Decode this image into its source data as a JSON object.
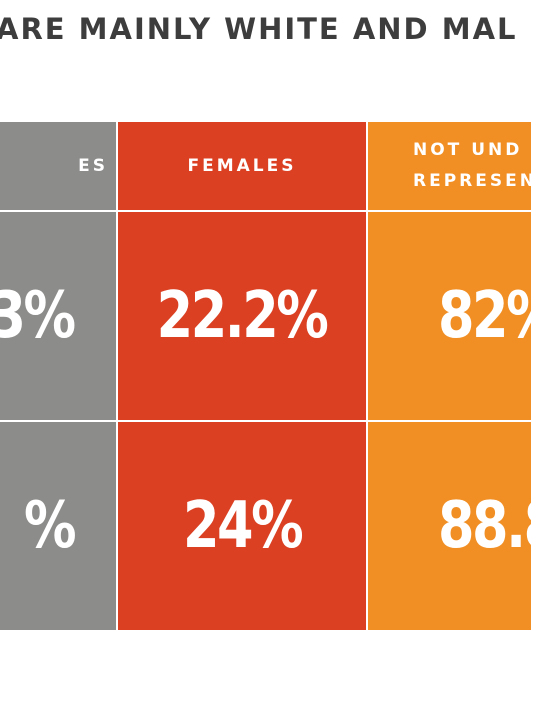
{
  "title": "ARE MAINLY WHITE AND MAL",
  "columns": [
    {
      "header_lines": [
        "ES"
      ]
    },
    {
      "header_lines": [
        "FEMALES"
      ]
    },
    {
      "header_lines": [
        "NOT UND",
        "REPRESEN"
      ]
    }
  ],
  "rows": [
    [
      "3%",
      "22.2%",
      "82%"
    ],
    [
      "%",
      "24%",
      "88.8"
    ]
  ],
  "colors": {
    "gray": "#8c8c8a",
    "red": "#db4023",
    "orange": "#f18f25",
    "title": "#3d3d3d"
  }
}
